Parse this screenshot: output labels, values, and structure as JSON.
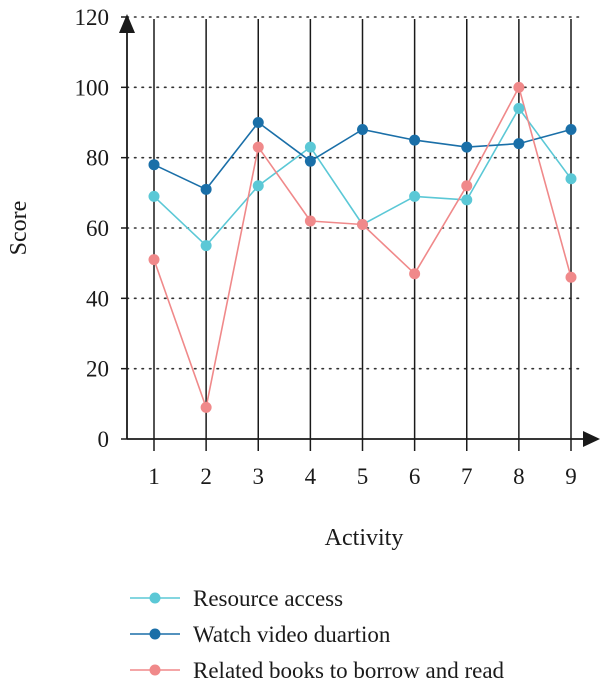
{
  "chart_data": {
    "type": "line",
    "xlabel": "Activity",
    "ylabel": "Score",
    "x": [
      1,
      2,
      3,
      4,
      5,
      6,
      7,
      8,
      9
    ],
    "xlim": [
      0,
      9.5
    ],
    "ylim": [
      0,
      120
    ],
    "y_ticks": [
      0,
      20,
      40,
      60,
      80,
      100,
      120
    ],
    "grid": "horizontal-dotted",
    "legend_position": "bottom",
    "series": [
      {
        "name": "Resource access",
        "color": "#5bc8d6",
        "values": [
          69,
          55,
          72,
          83,
          61,
          69,
          68,
          94,
          74
        ]
      },
      {
        "name": "Watch video duartion",
        "color": "#1a6fa8",
        "values": [
          78,
          71,
          90,
          79,
          88,
          85,
          83,
          84,
          88
        ]
      },
      {
        "name": "Related books to borrow and read",
        "color": "#f0898a",
        "values": [
          51,
          9,
          83,
          62,
          61,
          47,
          72,
          100,
          46
        ]
      }
    ]
  }
}
